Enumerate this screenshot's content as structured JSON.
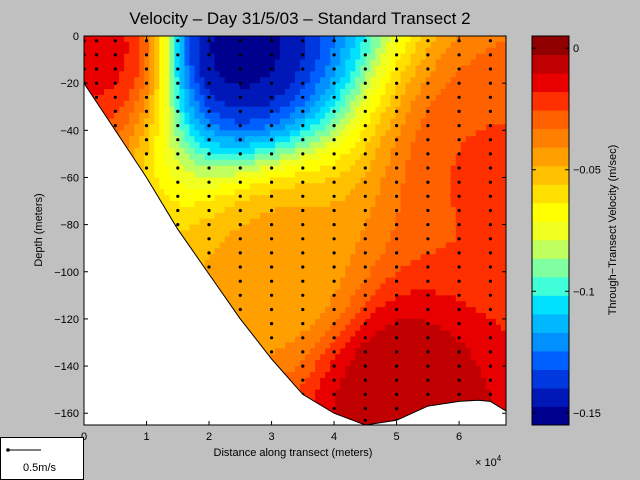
{
  "chart_data": {
    "type": "heatmap",
    "title": "Velocity – Day 31/5/03 – Standard Transect 2",
    "xlabel": "Distance along transect (meters)",
    "ylabel": "Depth (meters)",
    "x_multiplier_label": "× 10",
    "x_multiplier_exp": "4",
    "xlim": [
      0,
      67500
    ],
    "ylim": [
      -165,
      0
    ],
    "xticks": [
      "0",
      "1",
      "2",
      "3",
      "4",
      "5",
      "6"
    ],
    "yticks": [
      "0",
      "−20",
      "−40",
      "−60",
      "−80",
      "−100",
      "−120",
      "−140",
      "−160"
    ],
    "colorbar": {
      "label": "Through−Transect Velocity (m/sec)",
      "range": [
        -0.155,
        0.005
      ],
      "ticks": [
        "0",
        "−0.05",
        "−0.1",
        "−0.15"
      ],
      "colors": [
        "#00008f",
        "#0018b8",
        "#0038e0",
        "#0060ff",
        "#0090ff",
        "#00b8ff",
        "#00e0ff",
        "#40ffd8",
        "#80ffa0",
        "#c0ff60",
        "#f0ff20",
        "#ffff00",
        "#ffe000",
        "#ffc000",
        "#ffa000",
        "#ff8000",
        "#ff6000",
        "#ff3000",
        "#e80000",
        "#c00000",
        "#900000"
      ]
    },
    "seabed": [
      [
        0,
        -20
      ],
      [
        5000,
        -40
      ],
      [
        10000,
        -60
      ],
      [
        15000,
        -82
      ],
      [
        20000,
        -101
      ],
      [
        25000,
        -120
      ],
      [
        30000,
        -137
      ],
      [
        35000,
        -152
      ],
      [
        40000,
        -160
      ],
      [
        45000,
        -165
      ],
      [
        50000,
        -163
      ],
      [
        55000,
        -157
      ],
      [
        60000,
        -155
      ],
      [
        63000,
        -154.5
      ],
      [
        65000,
        -155
      ],
      [
        67500,
        -159
      ]
    ],
    "velocity_cores": [
      {
        "x": 25000,
        "depth": -5,
        "velocity": -0.15
      },
      {
        "x": 2000,
        "depth": -5,
        "velocity": -0.015
      },
      {
        "x": 32000,
        "depth": -100,
        "velocity": -0.045
      },
      {
        "x": 50000,
        "depth": -150,
        "velocity": -0.005
      },
      {
        "x": 65000,
        "depth": -60,
        "velocity": -0.025
      }
    ],
    "profile_stations_x": [
      0,
      2000,
      5000,
      10000,
      15000,
      20000,
      25000,
      30000,
      35000,
      40000,
      45000,
      50000,
      55000,
      60000,
      65000
    ],
    "sample_depths": [
      -2,
      -8,
      -14,
      -20,
      -26,
      -32,
      -38,
      -44,
      -50,
      -56,
      -62,
      -68,
      -74,
      -80,
      -86,
      -92,
      -98,
      -104,
      -110,
      -116,
      -122,
      -128,
      -134,
      -140,
      -146,
      -152,
      -158,
      -163
    ]
  },
  "legend": {
    "scale_label": "0.5m/s"
  }
}
